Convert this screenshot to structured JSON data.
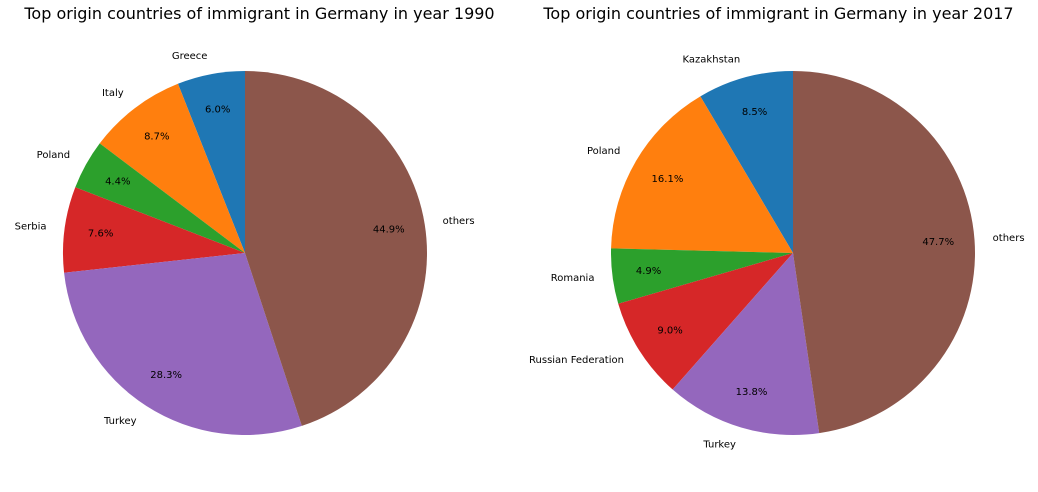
{
  "chart_data": [
    {
      "type": "pie",
      "title": "Top origin countries of immigrant in Germany in year 1990",
      "start_angle_deg": 90,
      "direction": "counterclockwise",
      "slices": [
        {
          "label": "Greece",
          "value": 6.0,
          "pct_label": "6.0%",
          "color": "#1f77b4"
        },
        {
          "label": "Italy",
          "value": 8.7,
          "pct_label": "8.7%",
          "color": "#ff7f0e"
        },
        {
          "label": "Poland",
          "value": 4.4,
          "pct_label": "4.4%",
          "color": "#2ca02c"
        },
        {
          "label": "Serbia",
          "value": 7.6,
          "pct_label": "7.6%",
          "color": "#d62728"
        },
        {
          "label": "Turkey",
          "value": 28.3,
          "pct_label": "28.3%",
          "color": "#9467bd"
        },
        {
          "label": "others",
          "value": 44.9,
          "pct_label": "44.9%",
          "color": "#8c564b"
        }
      ]
    },
    {
      "type": "pie",
      "title": "Top origin countries of immigrant in Germany in year 2017",
      "start_angle_deg": 90,
      "direction": "counterclockwise",
      "slices": [
        {
          "label": "Kazakhstan",
          "value": 8.5,
          "pct_label": "8.5%",
          "color": "#1f77b4"
        },
        {
          "label": "Poland",
          "value": 16.1,
          "pct_label": "16.1%",
          "color": "#ff7f0e"
        },
        {
          "label": "Romania",
          "value": 4.9,
          "pct_label": "4.9%",
          "color": "#2ca02c"
        },
        {
          "label": "Russian Federation",
          "value": 9.0,
          "pct_label": "9.0%",
          "color": "#d62728"
        },
        {
          "label": "Turkey",
          "value": 13.8,
          "pct_label": "13.8%",
          "color": "#9467bd"
        },
        {
          "label": "others",
          "value": 47.7,
          "pct_label": "47.7%",
          "color": "#8c564b"
        }
      ]
    }
  ]
}
